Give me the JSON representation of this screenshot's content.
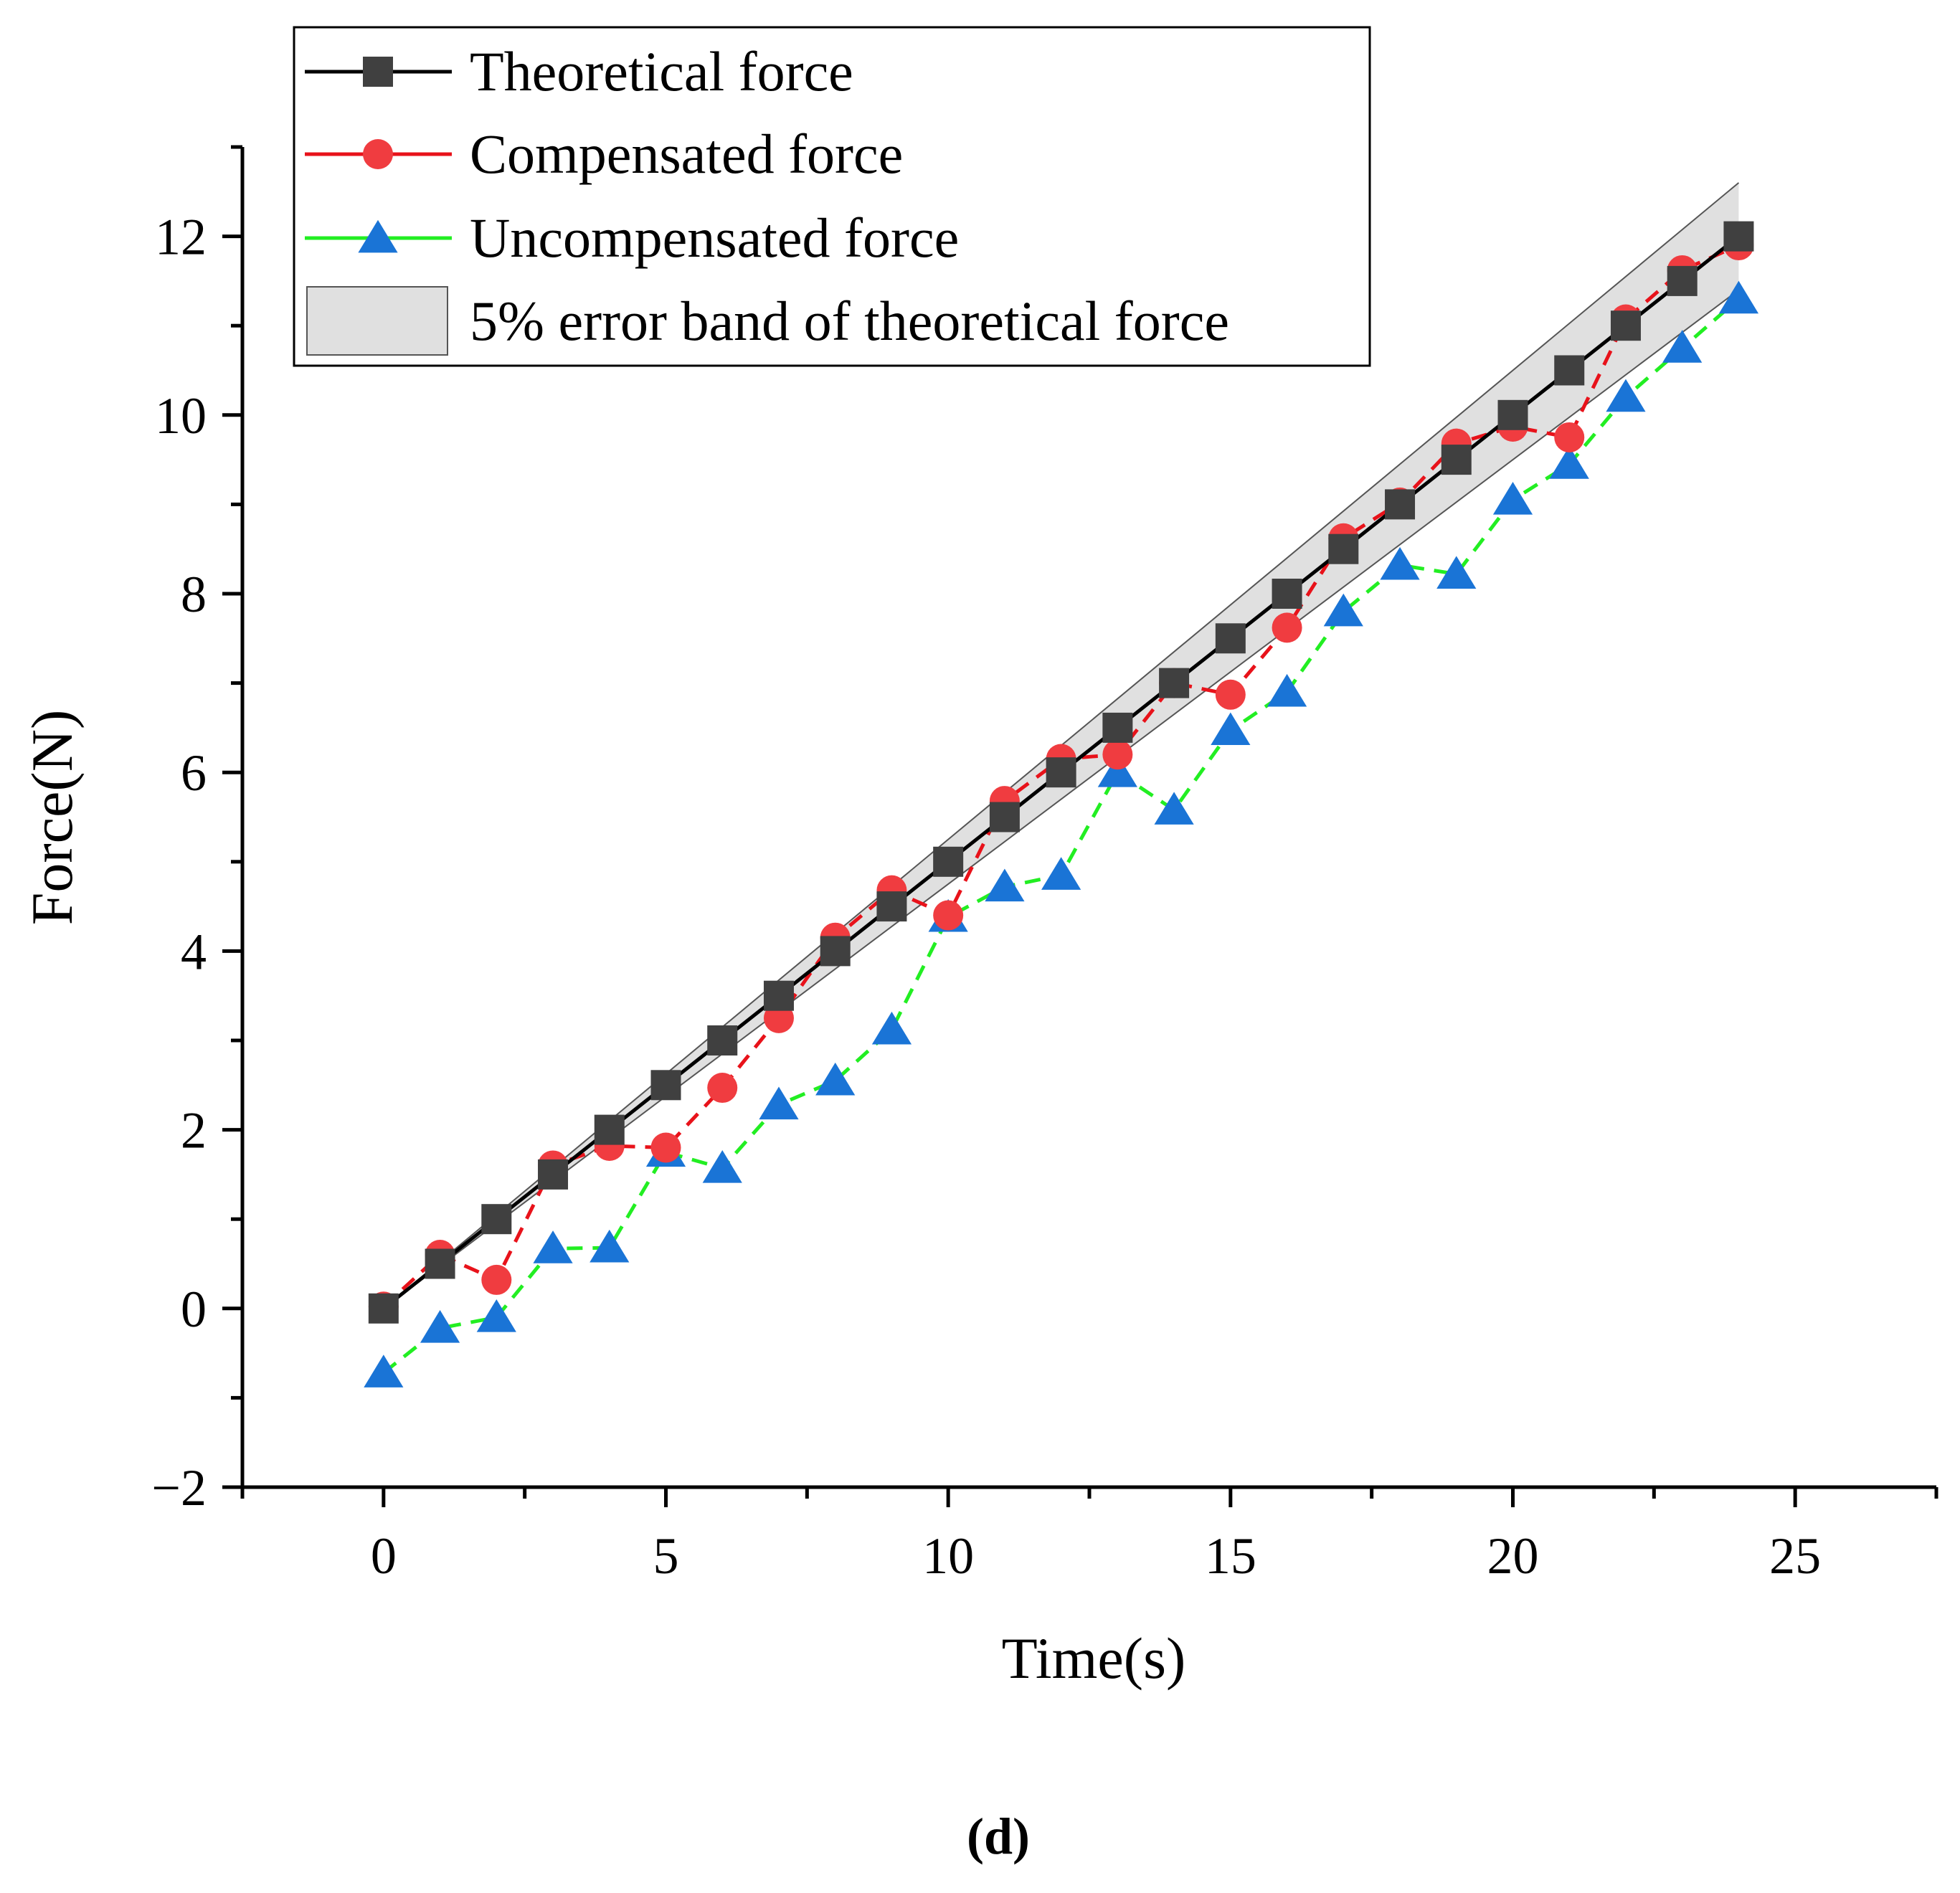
{
  "chart_data": {
    "type": "line",
    "xlabel": "Time(s)",
    "ylabel": "Force(N)",
    "xlim": [
      -2.5,
      27.5
    ],
    "ylim": [
      -2,
      13
    ],
    "xticks": [
      0,
      5,
      10,
      15,
      20,
      25
    ],
    "xtick_labels": [
      "0",
      "5",
      "10",
      "15",
      "20",
      "25"
    ],
    "yticks": [
      -2,
      0,
      2,
      4,
      6,
      8,
      10,
      12
    ],
    "ytick_labels": [
      "−2",
      "0",
      "2",
      "4",
      "6",
      "8",
      "10",
      "12"
    ],
    "x": [
      0,
      1,
      2,
      3,
      4,
      5,
      6,
      7,
      8,
      9,
      10,
      11,
      12,
      13,
      14,
      15,
      16,
      17,
      18,
      19,
      20,
      21,
      22,
      23,
      24
    ],
    "series": [
      {
        "name": "Theoretical force",
        "line_color": "#000000",
        "marker": "square",
        "marker_color": "#404040",
        "values": [
          0,
          0.5,
          1,
          1.5,
          2,
          2.5,
          3,
          3.5,
          4,
          4.5,
          5,
          5.5,
          6,
          6.5,
          7,
          7.5,
          8,
          8.5,
          9,
          9.5,
          10,
          10.5,
          11,
          11.5,
          12
        ]
      },
      {
        "name": "Compensated force",
        "line_color": "#e8121a",
        "marker": "circle",
        "marker_color": "#f03c40",
        "values": [
          0.02,
          0.6,
          0.32,
          1.6,
          1.82,
          1.8,
          2.47,
          3.25,
          4.15,
          4.68,
          4.4,
          5.68,
          6.15,
          6.2,
          7.0,
          6.87,
          7.62,
          8.62,
          9.02,
          9.68,
          9.87,
          9.75,
          11.07,
          11.62,
          11.9
        ]
      },
      {
        "name": "Uncompensated force",
        "line_color": "#22ee22",
        "marker": "triangle",
        "marker_color": "#1a74d6",
        "values": [
          -0.72,
          -0.22,
          -0.1,
          0.67,
          0.68,
          1.75,
          1.57,
          2.28,
          2.55,
          3.12,
          4.38,
          4.72,
          4.85,
          6.0,
          5.58,
          6.47,
          6.9,
          7.8,
          8.32,
          8.22,
          9.05,
          9.45,
          10.2,
          10.75,
          11.3
        ]
      }
    ],
    "band": {
      "name": "5% error band of theoretical force",
      "relative_error": 0.05,
      "fill_color": "#e0e0e0"
    },
    "legend_position": "top-left",
    "panel_label": "d"
  }
}
